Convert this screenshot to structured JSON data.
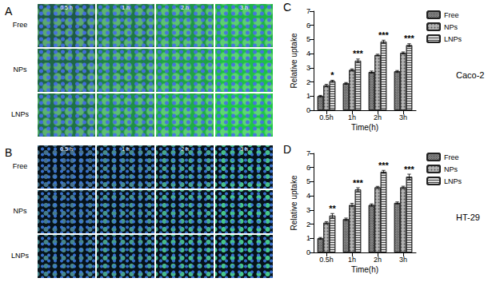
{
  "image_panels": [
    {
      "panel": "A",
      "rows": [
        "Free",
        "NPs",
        "LNPs"
      ],
      "columns": [
        "0.5 h",
        "1 h",
        "2 h",
        "3 h"
      ]
    },
    {
      "panel": "B",
      "rows": [
        "Free",
        "NPs",
        "LNPs"
      ],
      "columns": [
        "0.5 h",
        "1 h",
        "2 h",
        "3 h"
      ]
    }
  ],
  "chart_data": [
    {
      "type": "bar",
      "panel": "C",
      "title": "Caco-2",
      "x_label": "Time(h)",
      "y_label": "Relative uptake",
      "categories": [
        "0.5h",
        "1h",
        "2h",
        "3h"
      ],
      "series": [
        {
          "name": "Free",
          "color": "#8c8c8c",
          "values": [
            1.0,
            1.9,
            2.7,
            2.75
          ],
          "errors": [
            0.05,
            0.06,
            0.07,
            0.06
          ]
        },
        {
          "name": "NPs",
          "color": "#b4b4b4",
          "values": [
            1.75,
            2.85,
            3.9,
            4.05
          ],
          "errors": [
            0.08,
            0.07,
            0.06,
            0.07
          ]
        },
        {
          "name": "LNPs",
          "color": "#dcdcdc",
          "values": [
            2.05,
            3.5,
            4.85,
            4.6
          ],
          "errors": [
            0.07,
            0.12,
            0.1,
            0.1
          ]
        }
      ],
      "annotations": [
        {
          "category": "0.5h",
          "text": "*"
        },
        {
          "category": "1h",
          "text": "***"
        },
        {
          "category": "2h",
          "text": "***"
        },
        {
          "category": "3h",
          "text": "***"
        }
      ],
      "ylim": [
        0,
        7
      ],
      "yticks": [
        0,
        1,
        2,
        3,
        4,
        5,
        6,
        7
      ],
      "grid": false,
      "legend": "upper right"
    },
    {
      "type": "bar",
      "panel": "D",
      "title": "HT-29",
      "x_label": "Time(h)",
      "y_label": "Relative uptake",
      "categories": [
        "0.5h",
        "1h",
        "2h",
        "3h"
      ],
      "series": [
        {
          "name": "Free",
          "color": "#8c8c8c",
          "values": [
            1.0,
            2.35,
            3.35,
            3.5
          ],
          "errors": [
            0.06,
            0.08,
            0.08,
            0.07
          ]
        },
        {
          "name": "NPs",
          "color": "#b4b4b4",
          "values": [
            2.1,
            3.35,
            4.6,
            4.6
          ],
          "errors": [
            0.08,
            0.12,
            0.07,
            0.08
          ]
        },
        {
          "name": "LNPs",
          "color": "#dcdcdc",
          "values": [
            2.6,
            4.45,
            5.7,
            5.35
          ],
          "errors": [
            0.15,
            0.12,
            0.1,
            0.18
          ]
        }
      ],
      "annotations": [
        {
          "category": "0.5h",
          "text": "**"
        },
        {
          "category": "1h",
          "text": "***"
        },
        {
          "category": "2h",
          "text": "***"
        },
        {
          "category": "3h",
          "text": "***"
        }
      ],
      "ylim": [
        0,
        7
      ],
      "yticks": [
        0,
        1,
        2,
        3,
        4,
        5,
        6,
        7
      ],
      "grid": false,
      "legend": "upper right"
    }
  ]
}
